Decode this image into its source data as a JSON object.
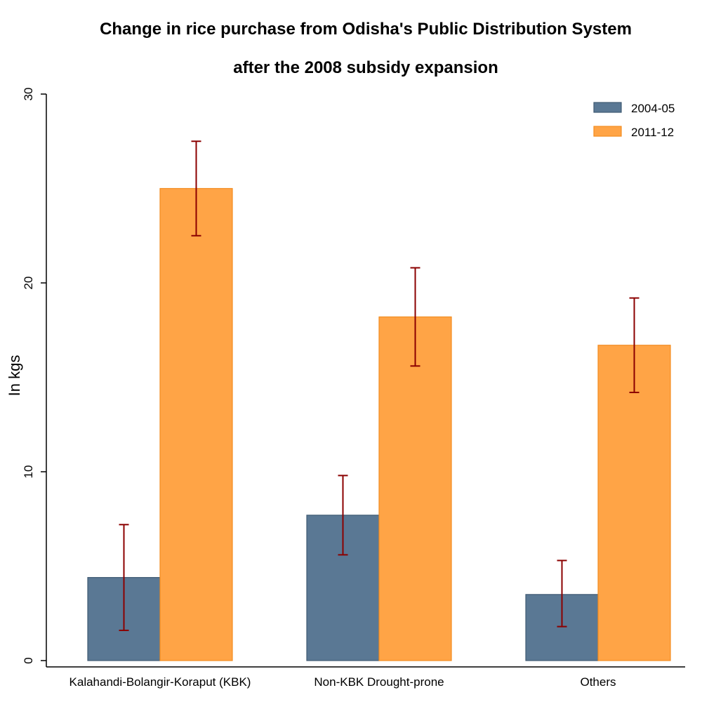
{
  "chart_data": {
    "type": "bar",
    "title_line1": "Change in rice purchase from Odisha's Public Distribution System",
    "title_line2": "after the 2008 subsidy expansion",
    "xlabel": "",
    "ylabel": "In kgs",
    "ylim": [
      0,
      30
    ],
    "yticks": [
      0,
      10,
      20,
      30
    ],
    "grid": false,
    "legend_position": "top-right",
    "categories": [
      "Kalahandi-Bolangir-Koraput (KBK)",
      "Non-KBK Drought-prone",
      "Others"
    ],
    "series": [
      {
        "name": "2004-05",
        "color": "#5a7894",
        "values": [
          4.4,
          7.7,
          3.5
        ],
        "ci_low": [
          1.6,
          5.6,
          1.8
        ],
        "ci_high": [
          7.2,
          9.8,
          5.3
        ]
      },
      {
        "name": "2011-12",
        "color": "#ffa446",
        "values": [
          25.0,
          18.2,
          16.7
        ],
        "ci_low": [
          22.5,
          15.6,
          14.2
        ],
        "ci_high": [
          27.5,
          20.8,
          19.2
        ]
      }
    ],
    "errorbar_color": "#8b0000"
  }
}
